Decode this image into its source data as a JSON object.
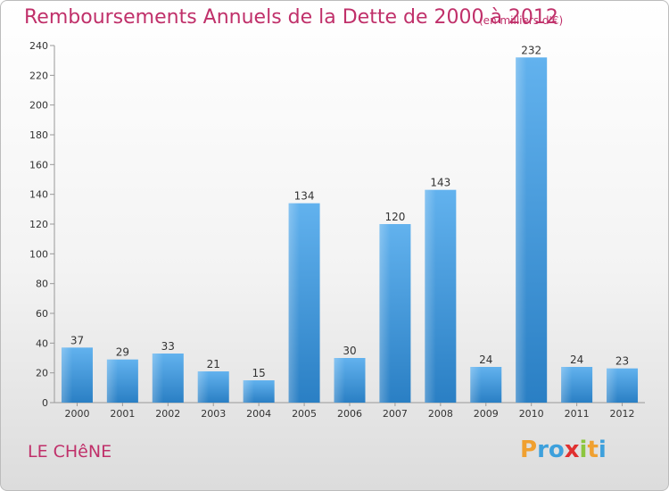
{
  "header": {
    "title": "Remboursements Annuels de la Dette de 2000 à 2012",
    "unit": "(en milliers d'€)"
  },
  "footer": {
    "town": "LE CHêNE",
    "logo_letters": [
      "P",
      "r",
      "o",
      "x",
      "i",
      "t",
      "i"
    ],
    "logo_colors": [
      "#f0a030",
      "#3da0dc",
      "#3da0dc",
      "#e03030",
      "#8cc63f",
      "#f0a030",
      "#3da0dc"
    ]
  },
  "chart_data": {
    "type": "bar",
    "categories": [
      "2000",
      "2001",
      "2002",
      "2003",
      "2004",
      "2005",
      "2006",
      "2007",
      "2008",
      "2009",
      "2010",
      "2011",
      "2012"
    ],
    "values": [
      37,
      29,
      33,
      21,
      15,
      134,
      30,
      120,
      143,
      24,
      232,
      24,
      23
    ],
    "data_labels": [
      "37",
      "29",
      "33",
      "21",
      "15",
      "134",
      "30",
      "120",
      "143",
      "24",
      "232",
      "24",
      "23"
    ],
    "yticks": [
      "0",
      "20",
      "40",
      "60",
      "80",
      "100",
      "120",
      "140",
      "160",
      "180",
      "200",
      "220",
      "240"
    ],
    "ylim": [
      0,
      240
    ],
    "grid": false,
    "legend": "none",
    "bar_color_top": "#62b2ee",
    "bar_color_bottom": "#2a7fc4"
  }
}
